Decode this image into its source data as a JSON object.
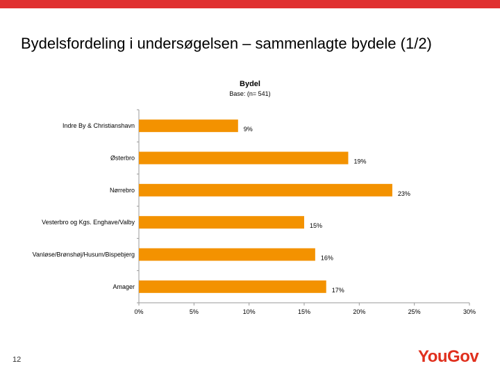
{
  "slide": {
    "title": "Bydelsfordeling i undersøgelsen – sammenlagte bydele (1/2)",
    "page_number": "12",
    "logo": "YouGov",
    "accent_color": "#e03030"
  },
  "chart_data": {
    "type": "bar",
    "orientation": "horizontal",
    "title": "Bydel",
    "subtitle": "Base: (n= 541)",
    "categories": [
      "Indre By & Christianshavn",
      "Østerbro",
      "Nørrebro",
      "Vesterbro og Kgs. Enghave/Valby",
      "Vanløse/Brønshøj/Husum/Bispebjerg",
      "Amager"
    ],
    "values": [
      9,
      19,
      23,
      15,
      16,
      17
    ],
    "data_labels": [
      "9%",
      "19%",
      "23%",
      "15%",
      "16%",
      "17%"
    ],
    "xlim": [
      0,
      30
    ],
    "xticks": [
      0,
      5,
      10,
      15,
      20,
      25,
      30
    ],
    "xtick_labels": [
      "0%",
      "5%",
      "10%",
      "15%",
      "20%",
      "25%",
      "30%"
    ],
    "bar_color": "#f39200",
    "grid": false,
    "legend": "none"
  }
}
